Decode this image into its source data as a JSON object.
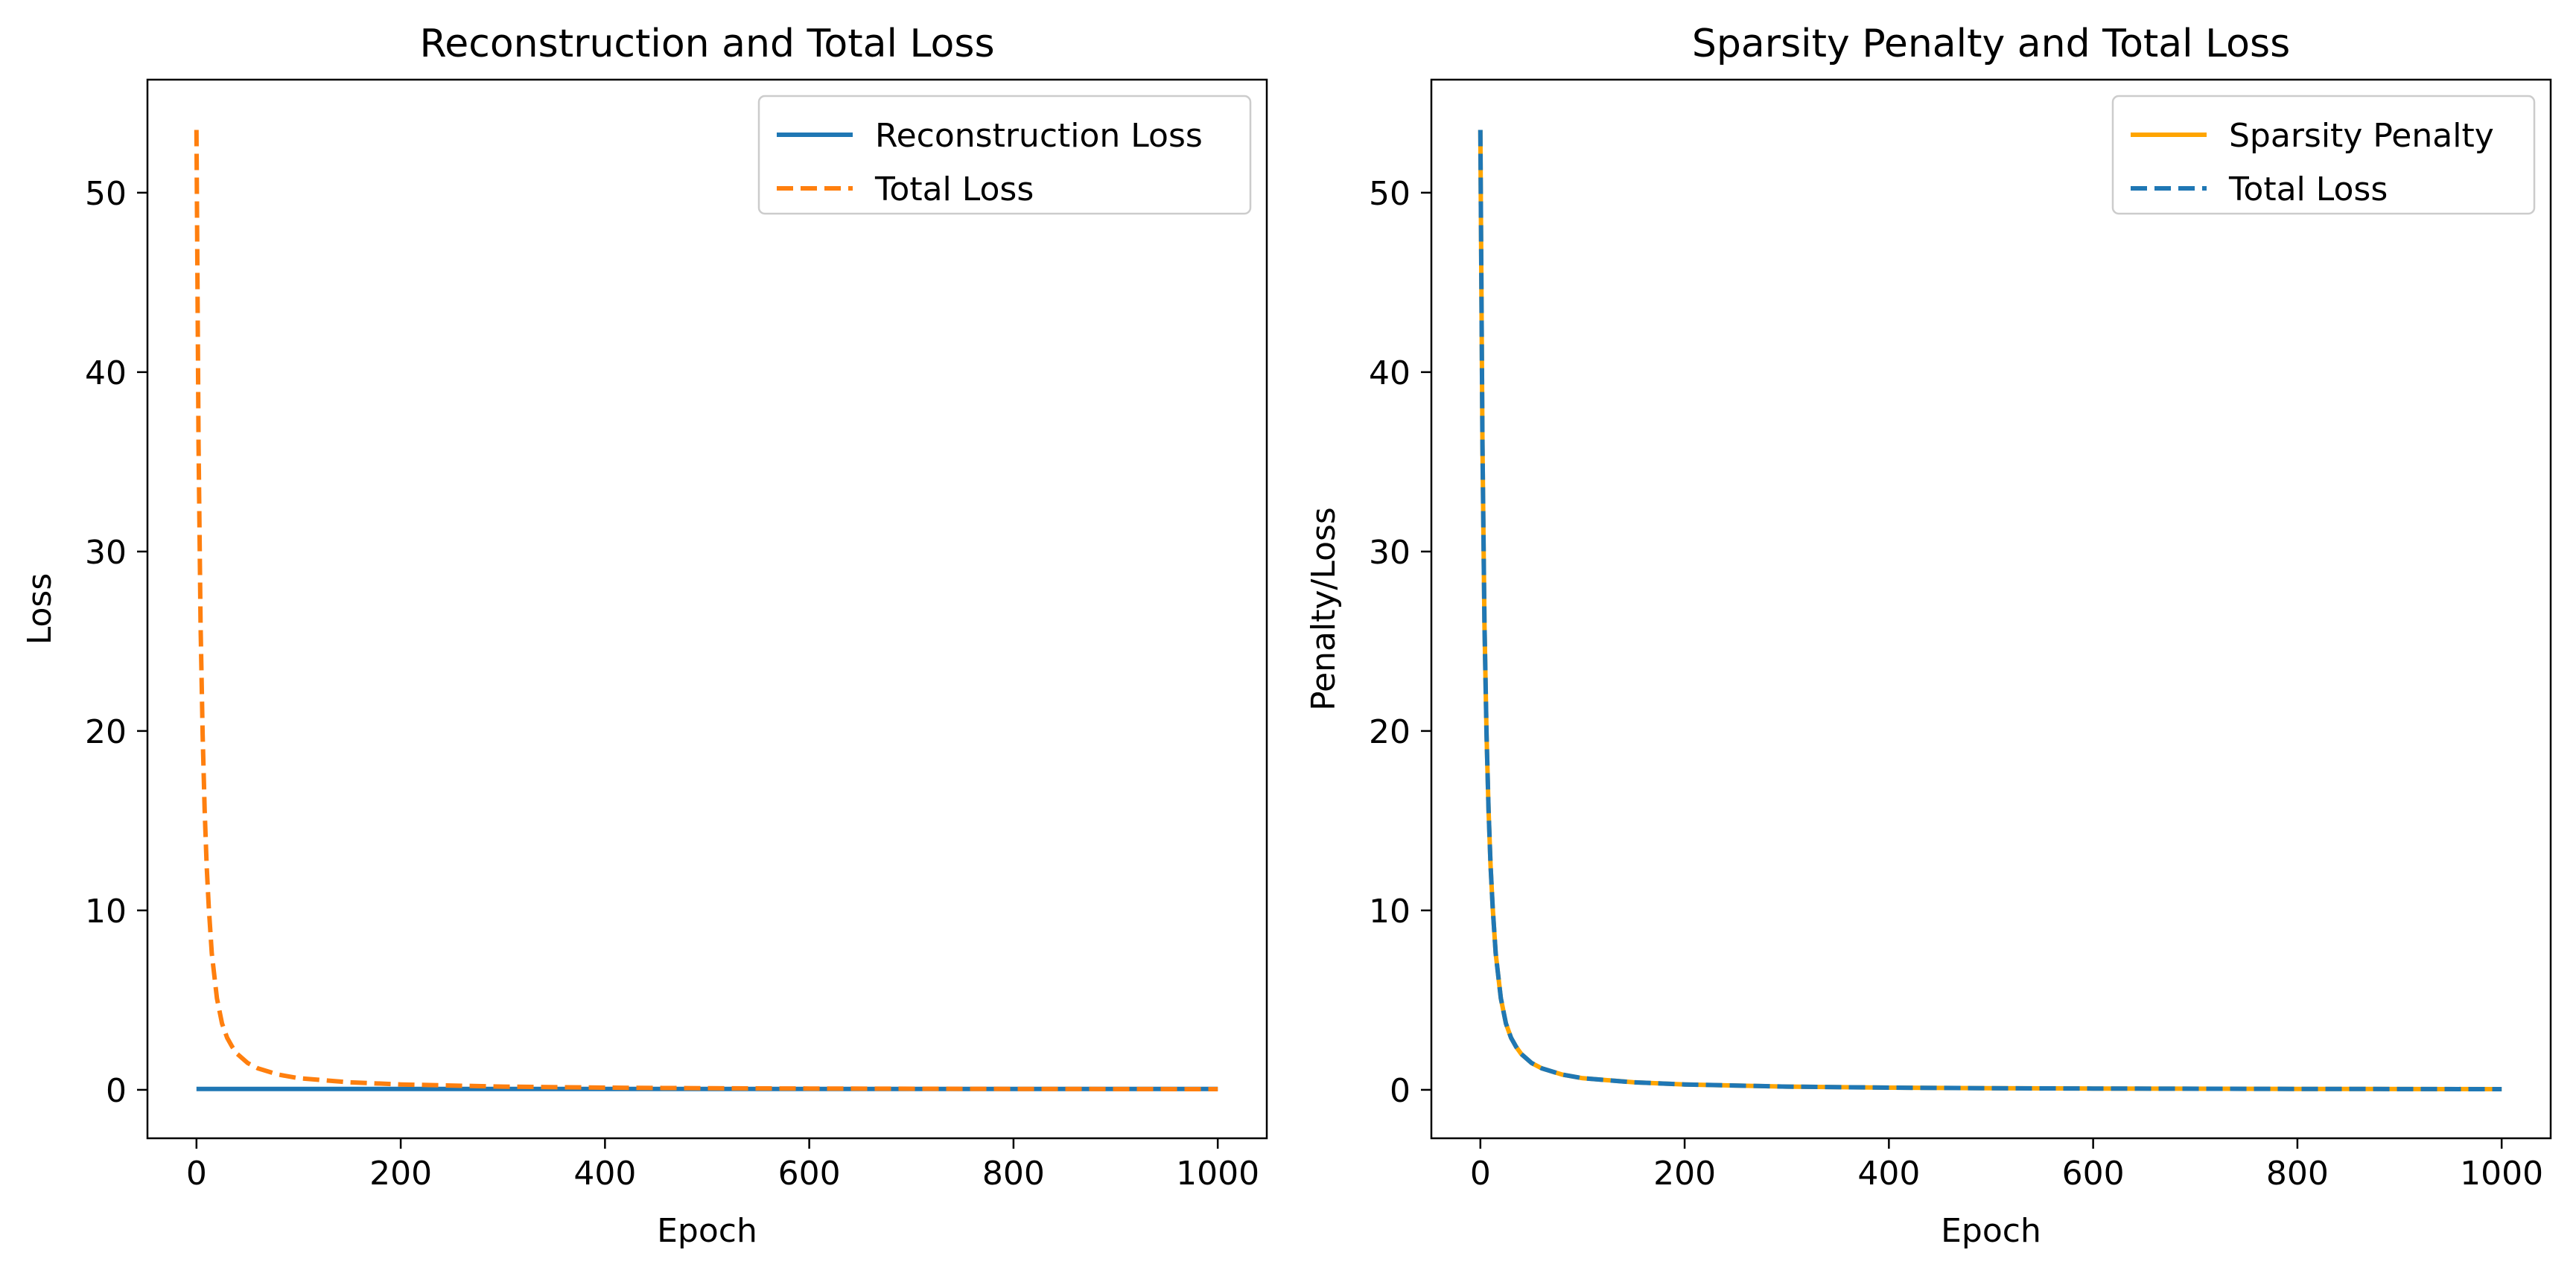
{
  "chart_data": [
    {
      "type": "line",
      "title": "Reconstruction and Total Loss",
      "xlabel": "Epoch",
      "ylabel": "Loss",
      "xlim": [
        -48,
        1048
      ],
      "ylim": [
        -2.7,
        56.3
      ],
      "xticks": [
        0,
        200,
        400,
        600,
        800,
        1000
      ],
      "yticks": [
        0,
        10,
        20,
        30,
        40,
        50
      ],
      "grid": false,
      "legend": "top-right",
      "series": [
        {
          "name": "Reconstruction Loss",
          "color": "#1f77b4",
          "style": "solid",
          "x": [
            0,
            1000
          ],
          "y": [
            0.05,
            0.05
          ]
        },
        {
          "name": "Total Loss",
          "color": "#ff7f0e",
          "style": "dashed",
          "x": [
            0,
            2,
            4,
            6,
            8,
            10,
            12,
            15,
            20,
            25,
            30,
            35,
            40,
            50,
            60,
            80,
            100,
            150,
            200,
            300,
            400,
            500,
            600,
            800,
            1000
          ],
          "y": [
            53.5,
            36.0,
            26.0,
            19.8,
            15.6,
            12.5,
            10.2,
            7.6,
            5.1,
            3.7,
            2.9,
            2.4,
            2.0,
            1.5,
            1.2,
            0.85,
            0.65,
            0.42,
            0.3,
            0.18,
            0.12,
            0.09,
            0.07,
            0.05,
            0.04
          ]
        }
      ]
    },
    {
      "type": "line",
      "title": "Sparsity Penalty and Total Loss",
      "xlabel": "Epoch",
      "ylabel": "Penalty/Loss",
      "xlim": [
        -48,
        1048
      ],
      "ylim": [
        -2.7,
        56.3
      ],
      "xticks": [
        0,
        200,
        400,
        600,
        800,
        1000
      ],
      "yticks": [
        0,
        10,
        20,
        30,
        40,
        50
      ],
      "grid": false,
      "legend": "top-right",
      "series": [
        {
          "name": "Sparsity Penalty",
          "color": "#ffa500",
          "style": "solid",
          "x": [
            0,
            2,
            4,
            6,
            8,
            10,
            12,
            15,
            20,
            25,
            30,
            35,
            40,
            50,
            60,
            80,
            100,
            150,
            200,
            300,
            400,
            500,
            600,
            800,
            1000
          ],
          "y": [
            53.5,
            36.0,
            26.0,
            19.8,
            15.6,
            12.5,
            10.2,
            7.6,
            5.1,
            3.7,
            2.9,
            2.4,
            2.0,
            1.5,
            1.2,
            0.85,
            0.65,
            0.42,
            0.3,
            0.18,
            0.12,
            0.09,
            0.07,
            0.05,
            0.04
          ]
        },
        {
          "name": "Total Loss",
          "color": "#1f77b4",
          "style": "dashed",
          "x": [
            0,
            2,
            4,
            6,
            8,
            10,
            12,
            15,
            20,
            25,
            30,
            35,
            40,
            50,
            60,
            80,
            100,
            150,
            200,
            300,
            400,
            500,
            600,
            800,
            1000
          ],
          "y": [
            53.5,
            36.0,
            26.0,
            19.8,
            15.6,
            12.5,
            10.2,
            7.6,
            5.1,
            3.7,
            2.9,
            2.4,
            2.0,
            1.5,
            1.2,
            0.85,
            0.65,
            0.42,
            0.3,
            0.18,
            0.12,
            0.09,
            0.07,
            0.05,
            0.04
          ]
        }
      ]
    }
  ]
}
